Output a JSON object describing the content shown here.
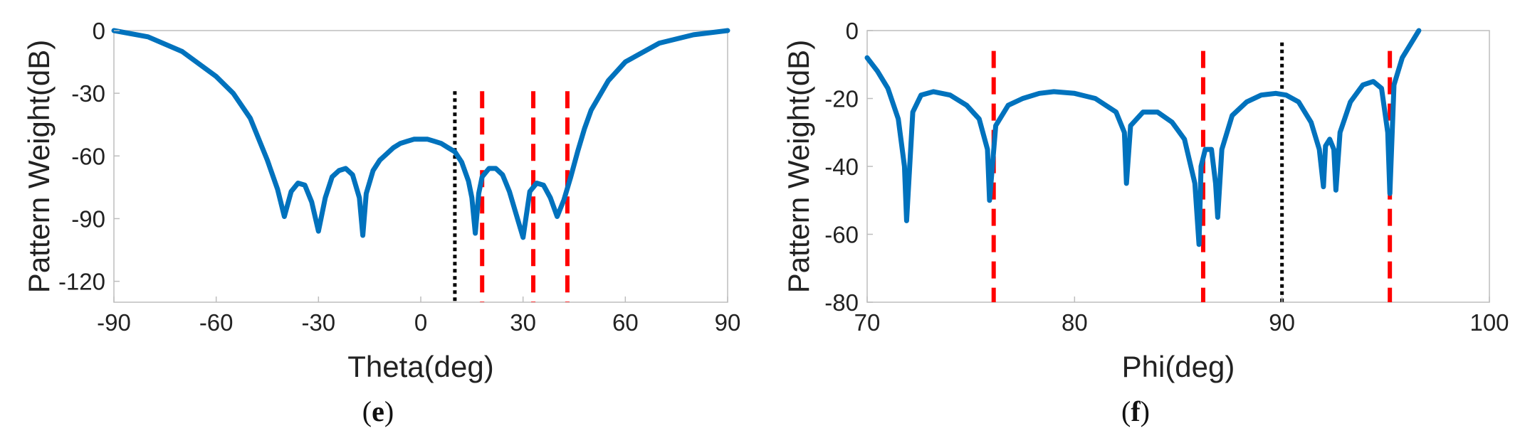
{
  "chart_data": [
    {
      "type": "line",
      "panel_label": "(e)",
      "panel_letter": "e",
      "xlabel": "Theta(deg)",
      "ylabel": "Pattern Weight(dB)",
      "xlim": [
        -90,
        90
      ],
      "ylim": [
        -130,
        0
      ],
      "xticks": [
        -90,
        -60,
        -30,
        0,
        30,
        60,
        90
      ],
      "yticks": [
        0,
        -30,
        -60,
        -90,
        -120
      ],
      "grid": false,
      "series": [
        {
          "color": "#0072BD",
          "x": [
            -90,
            -80,
            -70,
            -60,
            -55,
            -50,
            -45,
            -42,
            -40,
            -38,
            -36,
            -34,
            -32,
            -30,
            -28,
            -26,
            -24,
            -22,
            -20,
            -18,
            -17,
            -16,
            -14,
            -12,
            -10,
            -8,
            -6,
            -4,
            -2,
            0,
            2,
            4,
            6,
            8,
            10,
            12,
            14,
            15,
            16,
            17,
            18,
            20,
            22,
            24,
            26,
            28,
            30,
            32,
            34,
            36,
            38,
            40,
            42,
            44,
            46,
            48,
            50,
            55,
            60,
            70,
            80,
            90
          ],
          "y": [
            0,
            -3,
            -10,
            -22,
            -30,
            -42,
            -62,
            -76,
            -89,
            -77,
            -73,
            -74,
            -82,
            -96,
            -80,
            -70,
            -67,
            -66,
            -69,
            -80,
            -98,
            -78,
            -67,
            -62,
            -59,
            -56,
            -54,
            -53,
            -52,
            -52,
            -52,
            -53,
            -54,
            -56,
            -58,
            -63,
            -72,
            -80,
            -97,
            -78,
            -70,
            -66,
            -66,
            -69,
            -77,
            -88,
            -99,
            -77,
            -73,
            -74,
            -80,
            -89,
            -81,
            -70,
            -58,
            -47,
            -38,
            -24,
            -15,
            -6,
            -2,
            0
          ]
        }
      ],
      "markers": [
        {
          "type": "dotted",
          "color": "#000000",
          "x": 10,
          "y_top": -29
        },
        {
          "type": "dashed",
          "color": "#FF0000",
          "x": 18,
          "y_top": -29
        },
        {
          "type": "dashed",
          "color": "#FF0000",
          "x": 33,
          "y_top": -29
        },
        {
          "type": "dashed",
          "color": "#FF0000",
          "x": 43,
          "y_top": -29
        }
      ]
    },
    {
      "type": "line",
      "panel_label": "(f)",
      "panel_letter": "f",
      "xlabel": "Phi(deg)",
      "ylabel": "Pattern Weight(dB)",
      "xlim": [
        70,
        100
      ],
      "ylim": [
        -80,
        0
      ],
      "xticks": [
        70,
        80,
        90,
        100
      ],
      "yticks": [
        0,
        -20,
        -40,
        -60,
        -80
      ],
      "grid": false,
      "series": [
        {
          "color": "#0072BD",
          "x": [
            70,
            70.5,
            71,
            71.5,
            71.8,
            71.9,
            72.2,
            72.6,
            73.2,
            74,
            74.8,
            75.4,
            75.8,
            75.9,
            76.2,
            76.8,
            77.5,
            78.3,
            79,
            80,
            81,
            82,
            82.4,
            82.5,
            82.7,
            83.3,
            84,
            84.7,
            85.3,
            85.8,
            86,
            86.1,
            86.3,
            86.6,
            86.8,
            86.9,
            87.1,
            87.6,
            88.3,
            89,
            89.7,
            90.2,
            90.8,
            91.4,
            91.8,
            92,
            92.1,
            92.3,
            92.5,
            92.6,
            92.8,
            93.3,
            93.9,
            94.4,
            94.8,
            95.1,
            95.2,
            95.4,
            95.8,
            96.3,
            96.6
          ],
          "y": [
            -8,
            -12,
            -17,
            -26,
            -40,
            -56,
            -24,
            -19,
            -18,
            -19,
            -22,
            -26,
            -35,
            -50,
            -28,
            -22,
            -20,
            -18.5,
            -18,
            -18.5,
            -20,
            -24,
            -30,
            -45,
            -28,
            -24,
            -24,
            -27,
            -32,
            -45,
            -63,
            -40,
            -35,
            -35,
            -45,
            -55,
            -35,
            -25,
            -21,
            -19,
            -18.5,
            -19,
            -21,
            -27,
            -35,
            -46,
            -34,
            -32,
            -35,
            -47,
            -30,
            -21,
            -16,
            -15,
            -17,
            -30,
            -48,
            -16,
            -8,
            -3,
            0
          ]
        }
      ],
      "markers": [
        {
          "type": "dashed",
          "color": "#FF0000",
          "x": 76.1,
          "y_top": -6
        },
        {
          "type": "dashed",
          "color": "#FF0000",
          "x": 86.2,
          "y_top": -6
        },
        {
          "type": "dotted",
          "color": "#000000",
          "x": 90,
          "y_top": -3.5
        },
        {
          "type": "dashed",
          "color": "#FF0000",
          "x": 95.2,
          "y_top": -6
        }
      ]
    }
  ]
}
